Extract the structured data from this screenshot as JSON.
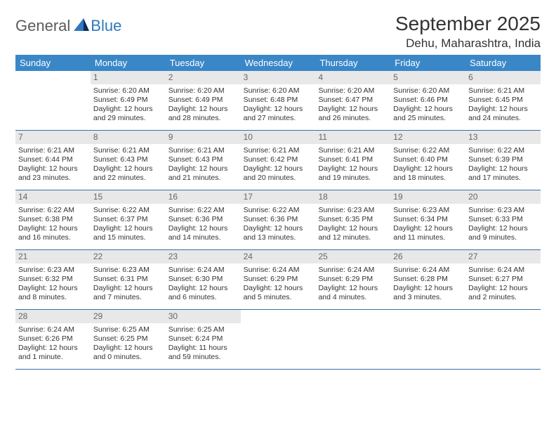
{
  "logo": {
    "word1": "General",
    "word2": "Blue"
  },
  "title": "September 2025",
  "location": "Dehu, Maharashtra, India",
  "colors": {
    "header_bg": "#3a87c8",
    "header_text": "#ffffff",
    "daynum_bg": "#e8e8e8",
    "daynum_text": "#666666",
    "rule": "#3a6ea5",
    "body_text": "#333333",
    "logo_gray": "#5a5a5a",
    "logo_blue": "#2f78bf"
  },
  "day_names": [
    "Sunday",
    "Monday",
    "Tuesday",
    "Wednesday",
    "Thursday",
    "Friday",
    "Saturday"
  ],
  "weeks": [
    [
      null,
      {
        "n": "1",
        "sr": "Sunrise: 6:20 AM",
        "ss": "Sunset: 6:49 PM",
        "d1": "Daylight: 12 hours",
        "d2": "and 29 minutes."
      },
      {
        "n": "2",
        "sr": "Sunrise: 6:20 AM",
        "ss": "Sunset: 6:49 PM",
        "d1": "Daylight: 12 hours",
        "d2": "and 28 minutes."
      },
      {
        "n": "3",
        "sr": "Sunrise: 6:20 AM",
        "ss": "Sunset: 6:48 PM",
        "d1": "Daylight: 12 hours",
        "d2": "and 27 minutes."
      },
      {
        "n": "4",
        "sr": "Sunrise: 6:20 AM",
        "ss": "Sunset: 6:47 PM",
        "d1": "Daylight: 12 hours",
        "d2": "and 26 minutes."
      },
      {
        "n": "5",
        "sr": "Sunrise: 6:20 AM",
        "ss": "Sunset: 6:46 PM",
        "d1": "Daylight: 12 hours",
        "d2": "and 25 minutes."
      },
      {
        "n": "6",
        "sr": "Sunrise: 6:21 AM",
        "ss": "Sunset: 6:45 PM",
        "d1": "Daylight: 12 hours",
        "d2": "and 24 minutes."
      }
    ],
    [
      {
        "n": "7",
        "sr": "Sunrise: 6:21 AM",
        "ss": "Sunset: 6:44 PM",
        "d1": "Daylight: 12 hours",
        "d2": "and 23 minutes."
      },
      {
        "n": "8",
        "sr": "Sunrise: 6:21 AM",
        "ss": "Sunset: 6:43 PM",
        "d1": "Daylight: 12 hours",
        "d2": "and 22 minutes."
      },
      {
        "n": "9",
        "sr": "Sunrise: 6:21 AM",
        "ss": "Sunset: 6:43 PM",
        "d1": "Daylight: 12 hours",
        "d2": "and 21 minutes."
      },
      {
        "n": "10",
        "sr": "Sunrise: 6:21 AM",
        "ss": "Sunset: 6:42 PM",
        "d1": "Daylight: 12 hours",
        "d2": "and 20 minutes."
      },
      {
        "n": "11",
        "sr": "Sunrise: 6:21 AM",
        "ss": "Sunset: 6:41 PM",
        "d1": "Daylight: 12 hours",
        "d2": "and 19 minutes."
      },
      {
        "n": "12",
        "sr": "Sunrise: 6:22 AM",
        "ss": "Sunset: 6:40 PM",
        "d1": "Daylight: 12 hours",
        "d2": "and 18 minutes."
      },
      {
        "n": "13",
        "sr": "Sunrise: 6:22 AM",
        "ss": "Sunset: 6:39 PM",
        "d1": "Daylight: 12 hours",
        "d2": "and 17 minutes."
      }
    ],
    [
      {
        "n": "14",
        "sr": "Sunrise: 6:22 AM",
        "ss": "Sunset: 6:38 PM",
        "d1": "Daylight: 12 hours",
        "d2": "and 16 minutes."
      },
      {
        "n": "15",
        "sr": "Sunrise: 6:22 AM",
        "ss": "Sunset: 6:37 PM",
        "d1": "Daylight: 12 hours",
        "d2": "and 15 minutes."
      },
      {
        "n": "16",
        "sr": "Sunrise: 6:22 AM",
        "ss": "Sunset: 6:36 PM",
        "d1": "Daylight: 12 hours",
        "d2": "and 14 minutes."
      },
      {
        "n": "17",
        "sr": "Sunrise: 6:22 AM",
        "ss": "Sunset: 6:36 PM",
        "d1": "Daylight: 12 hours",
        "d2": "and 13 minutes."
      },
      {
        "n": "18",
        "sr": "Sunrise: 6:23 AM",
        "ss": "Sunset: 6:35 PM",
        "d1": "Daylight: 12 hours",
        "d2": "and 12 minutes."
      },
      {
        "n": "19",
        "sr": "Sunrise: 6:23 AM",
        "ss": "Sunset: 6:34 PM",
        "d1": "Daylight: 12 hours",
        "d2": "and 11 minutes."
      },
      {
        "n": "20",
        "sr": "Sunrise: 6:23 AM",
        "ss": "Sunset: 6:33 PM",
        "d1": "Daylight: 12 hours",
        "d2": "and 9 minutes."
      }
    ],
    [
      {
        "n": "21",
        "sr": "Sunrise: 6:23 AM",
        "ss": "Sunset: 6:32 PM",
        "d1": "Daylight: 12 hours",
        "d2": "and 8 minutes."
      },
      {
        "n": "22",
        "sr": "Sunrise: 6:23 AM",
        "ss": "Sunset: 6:31 PM",
        "d1": "Daylight: 12 hours",
        "d2": "and 7 minutes."
      },
      {
        "n": "23",
        "sr": "Sunrise: 6:24 AM",
        "ss": "Sunset: 6:30 PM",
        "d1": "Daylight: 12 hours",
        "d2": "and 6 minutes."
      },
      {
        "n": "24",
        "sr": "Sunrise: 6:24 AM",
        "ss": "Sunset: 6:29 PM",
        "d1": "Daylight: 12 hours",
        "d2": "and 5 minutes."
      },
      {
        "n": "25",
        "sr": "Sunrise: 6:24 AM",
        "ss": "Sunset: 6:29 PM",
        "d1": "Daylight: 12 hours",
        "d2": "and 4 minutes."
      },
      {
        "n": "26",
        "sr": "Sunrise: 6:24 AM",
        "ss": "Sunset: 6:28 PM",
        "d1": "Daylight: 12 hours",
        "d2": "and 3 minutes."
      },
      {
        "n": "27",
        "sr": "Sunrise: 6:24 AM",
        "ss": "Sunset: 6:27 PM",
        "d1": "Daylight: 12 hours",
        "d2": "and 2 minutes."
      }
    ],
    [
      {
        "n": "28",
        "sr": "Sunrise: 6:24 AM",
        "ss": "Sunset: 6:26 PM",
        "d1": "Daylight: 12 hours",
        "d2": "and 1 minute."
      },
      {
        "n": "29",
        "sr": "Sunrise: 6:25 AM",
        "ss": "Sunset: 6:25 PM",
        "d1": "Daylight: 12 hours",
        "d2": "and 0 minutes."
      },
      {
        "n": "30",
        "sr": "Sunrise: 6:25 AM",
        "ss": "Sunset: 6:24 PM",
        "d1": "Daylight: 11 hours",
        "d2": "and 59 minutes."
      },
      null,
      null,
      null,
      null
    ]
  ]
}
